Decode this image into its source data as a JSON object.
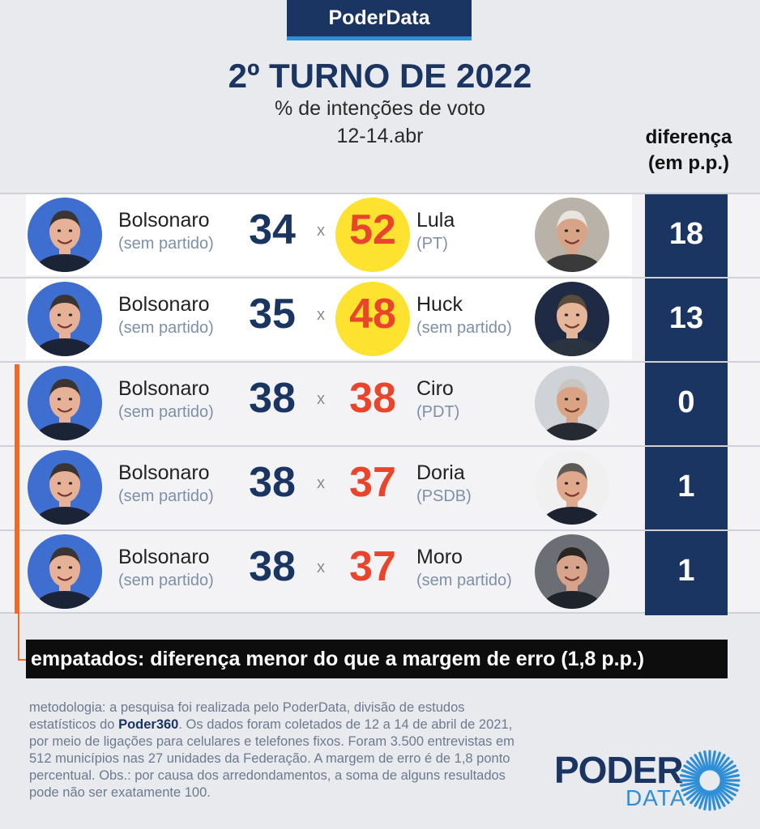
{
  "header": {
    "brand": "PoderData",
    "title": "2º TURNO DE 2022",
    "subtitle": "% de intenções de voto",
    "date": "12-14.abr",
    "diff_header_line1": "diferença",
    "diff_header_line2": "(em p.p.)"
  },
  "colors": {
    "navy": "#1b3563",
    "accent_blue": "#2f8fd6",
    "red": "#e8452c",
    "winner_highlight": "#fde230",
    "tie_orange": "#ee6a2b"
  },
  "chart_data": {
    "type": "table",
    "title": "2º TURNO DE 2022",
    "subtitle": "% de intenções de voto",
    "columns": [
      "candidate_a",
      "score_a",
      "candidate_b",
      "score_b",
      "diferença (em p.p.)"
    ],
    "rows": [
      {
        "left_name": "Bolsonaro",
        "left_party": "(sem partido)",
        "left_score": 34,
        "vs": "x",
        "right_name": "Lula",
        "right_party": "(PT)",
        "right_score": 52,
        "diff": 18,
        "winner": "right",
        "tied": false
      },
      {
        "left_name": "Bolsonaro",
        "left_party": "(sem partido)",
        "left_score": 35,
        "vs": "x",
        "right_name": "Huck",
        "right_party": "(sem partido)",
        "right_score": 48,
        "diff": 13,
        "winner": "right",
        "tied": false
      },
      {
        "left_name": "Bolsonaro",
        "left_party": "(sem partido)",
        "left_score": 38,
        "vs": "x",
        "right_name": "Ciro",
        "right_party": "(PDT)",
        "right_score": 38,
        "diff": 0,
        "winner": "none",
        "tied": true
      },
      {
        "left_name": "Bolsonaro",
        "left_party": "(sem partido)",
        "left_score": 38,
        "vs": "x",
        "right_name": "Doria",
        "right_party": "(PSDB)",
        "right_score": 37,
        "diff": 1,
        "winner": "none",
        "tied": true
      },
      {
        "left_name": "Bolsonaro",
        "left_party": "(sem partido)",
        "left_score": 38,
        "vs": "x",
        "right_name": "Moro",
        "right_party": "(sem partido)",
        "right_score": 37,
        "diff": 1,
        "winner": "none",
        "tied": true
      }
    ]
  },
  "tie_note": "empatados: diferença menor do que a margem de erro (1,8 p.p.)",
  "methodology": {
    "prefix": "metodologia: a pesquisa foi realizada pelo PoderData, divisão de estudos estatísticos do ",
    "bold": "Poder360",
    "suffix": ". Os dados foram coletados de 12 a 14 de abril de 2021, por meio de ligações para celulares e telefones fixos. Foram 3.500 entrevistas em 512 municípios nas 27 unidades da Federação. A margem de erro é de 1,8 ponto percentual. Obs.: por causa dos arredondamentos, a soma de alguns resultados pode não ser exatamente 100."
  },
  "logo": {
    "word": "PODER",
    "sub": "DATA"
  }
}
